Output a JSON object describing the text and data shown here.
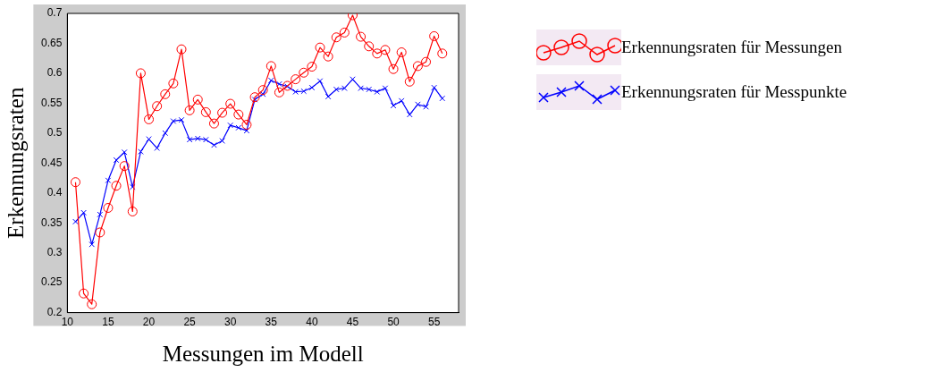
{
  "chart_data": {
    "type": "line",
    "xlabel": "Messungen im Modell",
    "ylabel": "Erkennungsraten",
    "x": [
      11,
      12,
      13,
      14,
      15,
      16,
      17,
      18,
      19,
      20,
      21,
      22,
      23,
      24,
      25,
      26,
      27,
      28,
      29,
      30,
      31,
      32,
      33,
      34,
      35,
      36,
      37,
      38,
      39,
      40,
      41,
      42,
      43,
      44,
      45,
      46,
      47,
      48,
      49,
      50,
      51,
      52,
      53,
      54,
      55,
      56
    ],
    "series": [
      {
        "name": "Erkennungsraten für Messungen",
        "color": "#ff0000",
        "marker": "circle",
        "values": [
          0.418,
          0.232,
          0.214,
          0.334,
          0.375,
          0.412,
          0.445,
          0.369,
          0.6,
          0.523,
          0.545,
          0.565,
          0.583,
          0.64,
          0.538,
          0.556,
          0.535,
          0.516,
          0.534,
          0.549,
          0.531,
          0.514,
          0.56,
          0.572,
          0.612,
          0.568,
          0.579,
          0.59,
          0.601,
          0.611,
          0.643,
          0.628,
          0.66,
          0.668,
          0.697,
          0.661,
          0.645,
          0.633,
          0.639,
          0.607,
          0.635,
          0.586,
          0.612,
          0.619,
          0.662,
          0.633
        ]
      },
      {
        "name": "Erkennungsraten für Messpunkte",
        "color": "#0000ff",
        "marker": "cross",
        "values": [
          0.352,
          0.367,
          0.314,
          0.364,
          0.421,
          0.455,
          0.468,
          0.41,
          0.469,
          0.49,
          0.475,
          0.5,
          0.52,
          0.522,
          0.489,
          0.491,
          0.489,
          0.48,
          0.487,
          0.513,
          0.509,
          0.504,
          0.556,
          0.565,
          0.588,
          0.582,
          0.578,
          0.569,
          0.57,
          0.576,
          0.587,
          0.561,
          0.573,
          0.575,
          0.59,
          0.575,
          0.573,
          0.569,
          0.575,
          0.546,
          0.554,
          0.531,
          0.548,
          0.544,
          0.576,
          0.558
        ]
      }
    ],
    "xlim": [
      10,
      58
    ],
    "xticks": [
      10,
      15,
      20,
      25,
      30,
      35,
      40,
      45,
      50,
      55
    ],
    "ylim": [
      0.2,
      0.7
    ],
    "yticks": [
      0.2,
      0.25,
      0.3,
      0.35,
      0.4,
      0.45,
      0.5,
      0.55,
      0.6,
      0.65,
      0.7
    ],
    "grid": false,
    "legend": "top right",
    "line_style": "solid"
  }
}
